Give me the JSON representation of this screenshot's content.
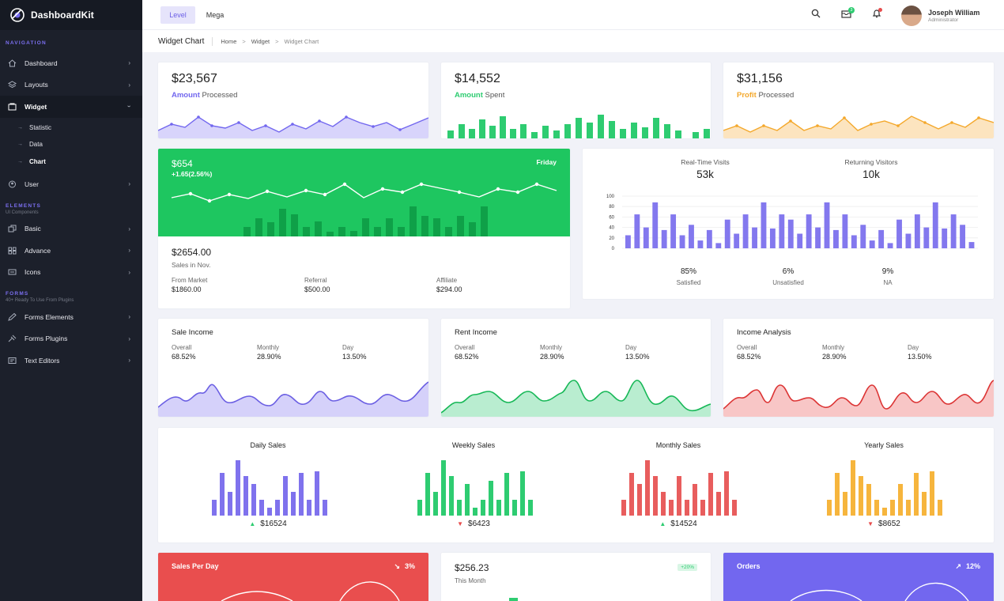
{
  "app": {
    "name": "DashboardKit"
  },
  "sidebar": {
    "nav_caption": "NAVIGATION",
    "items": [
      {
        "label": "Dashboard",
        "icon": "home-icon"
      },
      {
        "label": "Layouts",
        "icon": "layers-icon"
      },
      {
        "label": "Widget",
        "icon": "widget-icon"
      },
      {
        "label": "User",
        "icon": "user-icon"
      }
    ],
    "widget_sub": [
      "Statistic",
      "Data",
      "Chart"
    ],
    "elements_caption": "ELEMENTS",
    "elements_sub": "UI Components",
    "elements_items": [
      "Basic",
      "Advance",
      "Icons"
    ],
    "forms_caption": "FORMS",
    "forms_sub": "40+ Ready To Use From Plugins",
    "forms_items": [
      "Forms Elements",
      "Forms Plugins",
      "Text Editors"
    ]
  },
  "topbar": {
    "level": "Level",
    "mega": "Mega",
    "mail_badge": "3",
    "user_name": "Joseph William",
    "user_role": "Administrator"
  },
  "breadcrumb": {
    "title": "Widget Chart",
    "items": [
      "Home",
      "Widget",
      "Widget Chart"
    ]
  },
  "stats": [
    {
      "value": "$23,567",
      "label_accent": "Amount",
      "label_rest": "Processed",
      "color": "#7267ef"
    },
    {
      "value": "$14,552",
      "label_accent": "Amount",
      "label_rest": "Spent",
      "color": "#2ecc71"
    },
    {
      "value": "$31,156",
      "label_accent": "Profit",
      "label_rest": "Processed",
      "color": "#f4a82b"
    }
  ],
  "green_card": {
    "value": "$654",
    "change": "+1.65(2.56%)",
    "day": "Friday",
    "total": "$2654.00",
    "total_label": "Sales in Nov.",
    "breakdown": [
      {
        "label": "From Market",
        "value": "$1860.00"
      },
      {
        "label": "Referral",
        "value": "$500.00"
      },
      {
        "label": "Affiliate",
        "value": "$294.00"
      }
    ]
  },
  "visits": {
    "a_label": "Real-Time Visits",
    "a_value": "53k",
    "b_label": "Returning Visitors",
    "b_value": "10k",
    "stats": [
      {
        "value": "85%",
        "label": "Satisfied"
      },
      {
        "value": "6%",
        "label": "Unsatisfied"
      },
      {
        "value": "9%",
        "label": "NA"
      }
    ]
  },
  "income": [
    {
      "title": "Sale Income",
      "color": "#7267ef",
      "fill": "#d5d1fa"
    },
    {
      "title": "Rent Income",
      "color": "#2ecc71",
      "fill": "#b9edd0"
    },
    {
      "title": "Income Analysis",
      "color": "#e74c4c",
      "fill": "#f8c6c6"
    }
  ],
  "income_metrics": [
    {
      "label": "Overall",
      "value": "68.52%"
    },
    {
      "label": "Monthly",
      "value": "28.90%"
    },
    {
      "label": "Day",
      "value": "13.50%"
    }
  ],
  "sales": [
    {
      "title": "Daily Sales",
      "value": "$16524",
      "trend": "up",
      "color": "#7f72ed"
    },
    {
      "title": "Weekly Sales",
      "value": "$6423",
      "trend": "down",
      "color": "#2ecc71"
    },
    {
      "title": "Monthly Sales",
      "value": "$14524",
      "trend": "up",
      "color": "#e85d5d"
    },
    {
      "title": "Yearly Sales",
      "value": "$8652",
      "trend": "down",
      "color": "#f6b53d"
    }
  ],
  "bottom": {
    "spd_title": "Sales Per Day",
    "spd_pct": "3%",
    "month_value": "$256.23",
    "month_label": "This Month",
    "month_badge": "+20%",
    "orders_title": "Orders",
    "orders_pct": "12%"
  },
  "chart_data": {
    "type": "bar",
    "yticks": [
      0,
      20,
      40,
      60,
      80,
      100
    ],
    "ylim": [
      0,
      100
    ],
    "values": [
      25,
      65,
      40,
      88,
      35,
      65,
      25,
      45,
      15,
      35,
      10,
      55,
      28,
      65,
      40,
      88,
      38,
      65,
      55,
      28,
      65,
      40,
      88,
      35,
      65,
      25,
      45,
      15,
      35,
      10,
      55,
      28,
      65,
      40,
      88,
      38,
      65,
      45,
      12
    ]
  }
}
